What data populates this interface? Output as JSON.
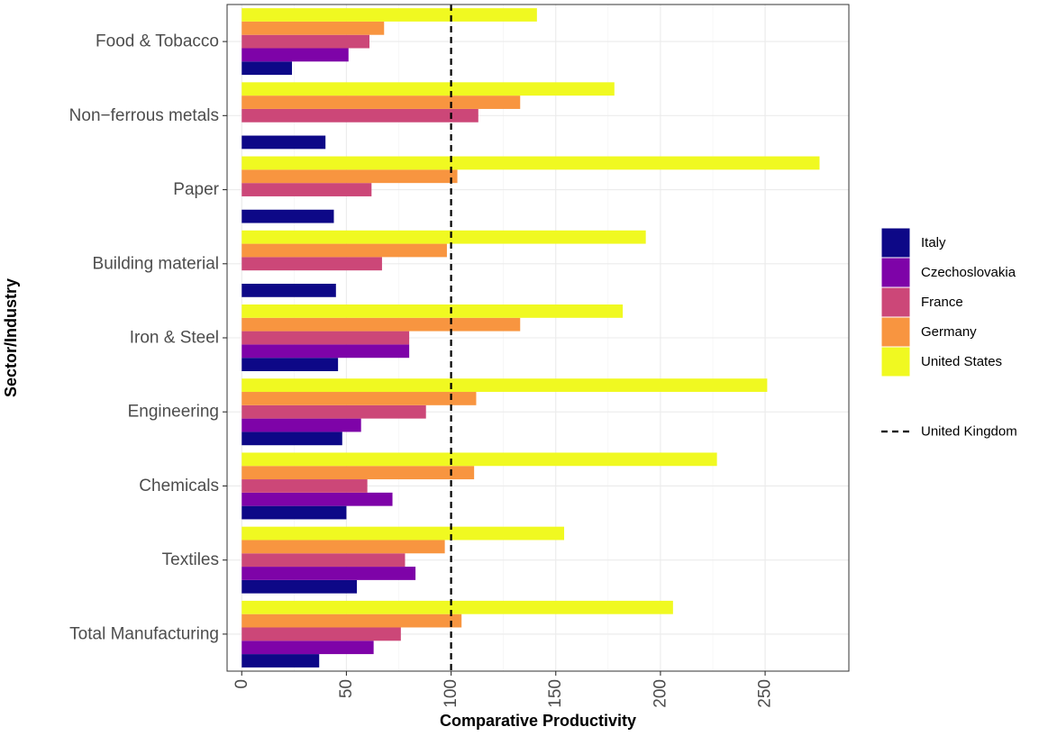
{
  "chart_data": {
    "type": "bar",
    "orientation": "horizontal",
    "xlabel": "Comparative Productivity",
    "ylabel": "Sector/Industry",
    "xlim": [
      -7,
      290
    ],
    "xticks": [
      0,
      50,
      100,
      150,
      200,
      250
    ],
    "grid": true,
    "legend_position": "right",
    "categories": [
      "Total Manufacturing",
      "Textiles",
      "Chemicals",
      "Engineering",
      "Iron & Steel",
      "Building material",
      "Paper",
      "Non−ferrous metals",
      "Food & Tobacco"
    ],
    "series": [
      {
        "name": "Italy",
        "color": "#0d0887",
        "values": [
          37,
          55,
          50,
          48,
          46,
          45,
          44,
          40,
          24
        ]
      },
      {
        "name": "Czechoslovakia",
        "color": "#7e03a8",
        "values": [
          63,
          83,
          72,
          57,
          80,
          null,
          null,
          null,
          51
        ]
      },
      {
        "name": "France",
        "color": "#cc4778",
        "values": [
          76,
          78,
          60,
          88,
          80,
          67,
          62,
          113,
          61
        ]
      },
      {
        "name": "Germany",
        "color": "#f89540",
        "values": [
          105,
          97,
          111,
          112,
          133,
          98,
          103,
          133,
          68
        ]
      },
      {
        "name": "United States",
        "color": "#f0f921",
        "values": [
          206,
          154,
          227,
          251,
          182,
          193,
          276,
          178,
          141
        ]
      }
    ],
    "reference_line": {
      "name": "United Kingdom",
      "value": 100,
      "style": "dashed",
      "color": "#000000"
    }
  }
}
